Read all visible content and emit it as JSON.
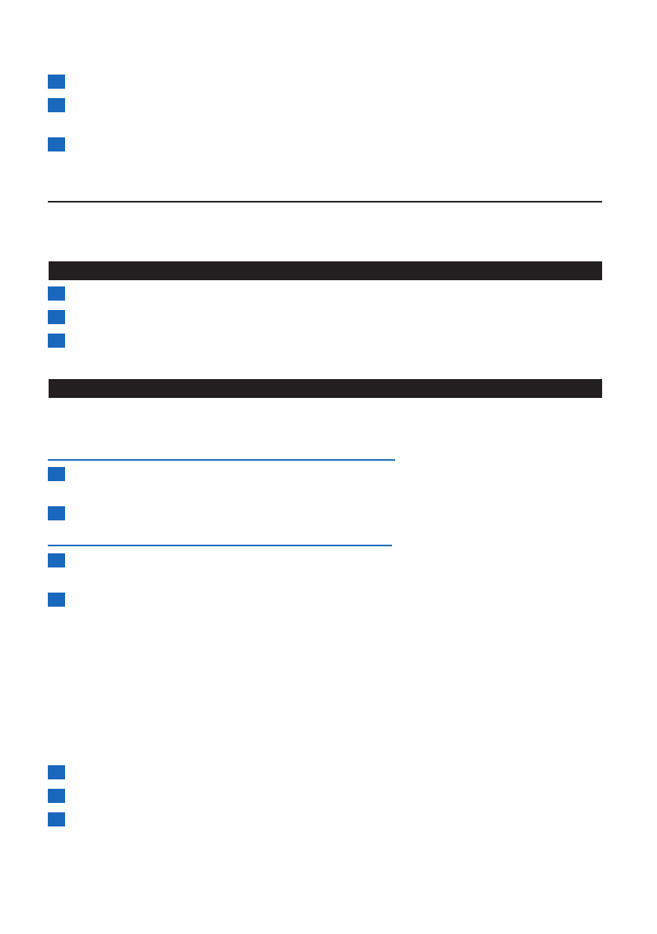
{
  "colors": {
    "step_marker": "#1a68bd",
    "section_bar": "#231f20",
    "rule": "#231f20",
    "subheading_rule": "#1a68bd"
  },
  "icons": {
    "step": "step-number-square"
  },
  "groups": [
    {
      "steps": 3
    },
    {
      "steps": 3
    },
    {
      "steps": 2
    },
    {
      "steps": 2
    },
    {
      "steps": 3
    }
  ]
}
